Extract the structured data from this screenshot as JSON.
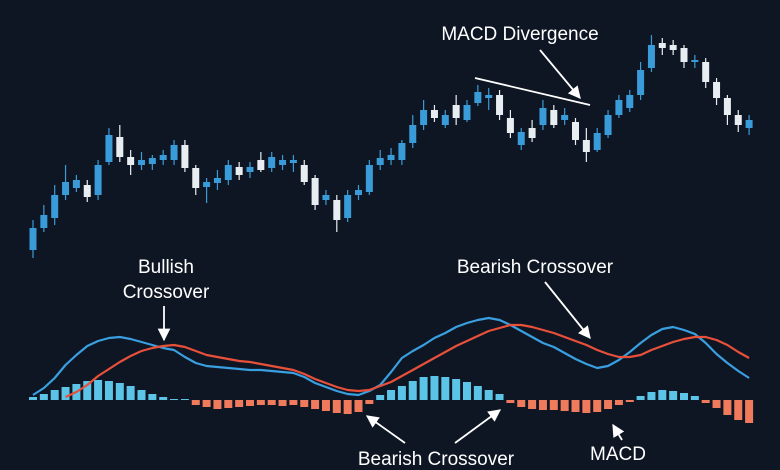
{
  "chart_data": [
    {
      "type": "candlestick",
      "ylim": [
        0,
        250
      ],
      "up_color": "#3a9bd9",
      "down_color": "#e8edf2",
      "annotations": [
        {
          "text": "MACD Divergence"
        }
      ],
      "candles": [
        {
          "open": 20,
          "high": 50,
          "low": 12,
          "close": 42
        },
        {
          "open": 42,
          "high": 65,
          "low": 38,
          "close": 55
        },
        {
          "open": 52,
          "high": 85,
          "low": 45,
          "close": 75
        },
        {
          "open": 75,
          "high": 105,
          "low": 70,
          "close": 88
        },
        {
          "open": 82,
          "high": 95,
          "low": 78,
          "close": 90
        },
        {
          "open": 85,
          "high": 90,
          "low": 68,
          "close": 73
        },
        {
          "open": 75,
          "high": 110,
          "low": 70,
          "close": 105
        },
        {
          "open": 108,
          "high": 142,
          "low": 105,
          "close": 135
        },
        {
          "open": 133,
          "high": 145,
          "low": 108,
          "close": 113
        },
        {
          "open": 113,
          "high": 120,
          "low": 95,
          "close": 105
        },
        {
          "open": 105,
          "high": 118,
          "low": 100,
          "close": 110
        },
        {
          "open": 106,
          "high": 115,
          "low": 100,
          "close": 112
        },
        {
          "open": 110,
          "high": 120,
          "low": 105,
          "close": 115
        },
        {
          "open": 110,
          "high": 130,
          "low": 105,
          "close": 125
        },
        {
          "open": 125,
          "high": 130,
          "low": 98,
          "close": 102
        },
        {
          "open": 102,
          "high": 105,
          "low": 75,
          "close": 82
        },
        {
          "open": 83,
          "high": 92,
          "low": 67,
          "close": 88
        },
        {
          "open": 87,
          "high": 100,
          "low": 80,
          "close": 92
        },
        {
          "open": 90,
          "high": 110,
          "low": 85,
          "close": 105
        },
        {
          "open": 103,
          "high": 108,
          "low": 90,
          "close": 95
        },
        {
          "open": 98,
          "high": 108,
          "low": 92,
          "close": 103
        },
        {
          "open": 110,
          "high": 118,
          "low": 98,
          "close": 100
        },
        {
          "open": 102,
          "high": 118,
          "low": 98,
          "close": 113
        },
        {
          "open": 105,
          "high": 115,
          "low": 100,
          "close": 110
        },
        {
          "open": 107,
          "high": 115,
          "low": 98,
          "close": 110
        },
        {
          "open": 105,
          "high": 110,
          "low": 85,
          "close": 88
        },
        {
          "open": 92,
          "high": 95,
          "low": 60,
          "close": 65
        },
        {
          "open": 70,
          "high": 80,
          "low": 65,
          "close": 75
        },
        {
          "open": 70,
          "high": 75,
          "low": 38,
          "close": 50
        },
        {
          "open": 52,
          "high": 80,
          "low": 48,
          "close": 75
        },
        {
          "open": 75,
          "high": 85,
          "low": 70,
          "close": 80
        },
        {
          "open": 78,
          "high": 110,
          "low": 75,
          "close": 105
        },
        {
          "open": 105,
          "high": 120,
          "low": 100,
          "close": 112
        },
        {
          "open": 110,
          "high": 122,
          "low": 105,
          "close": 115
        },
        {
          "open": 110,
          "high": 130,
          "low": 105,
          "close": 127
        },
        {
          "open": 127,
          "high": 155,
          "low": 122,
          "close": 145
        },
        {
          "open": 145,
          "high": 170,
          "low": 140,
          "close": 160
        },
        {
          "open": 160,
          "high": 165,
          "low": 148,
          "close": 152
        },
        {
          "open": 145,
          "high": 160,
          "low": 142,
          "close": 155
        },
        {
          "open": 165,
          "high": 175,
          "low": 145,
          "close": 152
        },
        {
          "open": 150,
          "high": 170,
          "low": 148,
          "close": 165
        },
        {
          "open": 167,
          "high": 185,
          "low": 164,
          "close": 178
        },
        {
          "open": 172,
          "high": 182,
          "low": 160,
          "close": 175
        },
        {
          "open": 175,
          "high": 180,
          "low": 150,
          "close": 155
        },
        {
          "open": 152,
          "high": 160,
          "low": 132,
          "close": 137
        },
        {
          "open": 125,
          "high": 142,
          "low": 120,
          "close": 138
        },
        {
          "open": 142,
          "high": 150,
          "low": 128,
          "close": 132
        },
        {
          "open": 145,
          "high": 170,
          "low": 140,
          "close": 162
        },
        {
          "open": 160,
          "high": 165,
          "low": 142,
          "close": 145
        },
        {
          "open": 150,
          "high": 162,
          "low": 145,
          "close": 155
        },
        {
          "open": 148,
          "high": 152,
          "low": 125,
          "close": 130
        },
        {
          "open": 130,
          "high": 142,
          "low": 108,
          "close": 118
        },
        {
          "open": 120,
          "high": 142,
          "low": 118,
          "close": 137
        },
        {
          "open": 135,
          "high": 160,
          "low": 132,
          "close": 155
        },
        {
          "open": 155,
          "high": 175,
          "low": 152,
          "close": 170
        },
        {
          "open": 162,
          "high": 180,
          "low": 158,
          "close": 175
        },
        {
          "open": 175,
          "high": 208,
          "low": 170,
          "close": 200
        },
        {
          "open": 202,
          "high": 235,
          "low": 198,
          "close": 225
        },
        {
          "open": 227,
          "high": 232,
          "low": 215,
          "close": 222
        },
        {
          "open": 225,
          "high": 230,
          "low": 215,
          "close": 220
        },
        {
          "open": 222,
          "high": 225,
          "low": 202,
          "close": 208
        },
        {
          "open": 208,
          "high": 215,
          "low": 202,
          "close": 210
        },
        {
          "open": 208,
          "high": 212,
          "low": 182,
          "close": 188
        },
        {
          "open": 188,
          "high": 192,
          "low": 165,
          "close": 172
        },
        {
          "open": 172,
          "high": 175,
          "low": 145,
          "close": 155
        },
        {
          "open": 155,
          "high": 160,
          "low": 138,
          "close": 145
        },
        {
          "open": 142,
          "high": 155,
          "low": 135,
          "close": 150
        }
      ]
    },
    {
      "type": "macd",
      "ylim": [
        -3,
        9.5
      ],
      "annotations": [
        {
          "lines": [
            "Bullish",
            "Crossover"
          ]
        },
        {
          "text": "Bearish Crossover"
        },
        {
          "text": "Bearish Crossover"
        },
        {
          "text": "MACD"
        }
      ],
      "histogram": {
        "positive_color": "#5cc4e6",
        "negative_color": "#f07b5c",
        "values": [
          0.3,
          0.6,
          1.0,
          1.3,
          1.6,
          1.9,
          2.0,
          1.9,
          1.7,
          1.4,
          1.0,
          0.6,
          0.3,
          0.1,
          0.1,
          -0.5,
          -0.7,
          -0.9,
          -0.8,
          -0.7,
          -0.6,
          -0.5,
          -0.5,
          -0.6,
          -0.5,
          -0.7,
          -0.9,
          -1.1,
          -1.3,
          -1.4,
          -1.2,
          -0.4,
          0.5,
          1.0,
          1.4,
          1.9,
          2.3,
          2.4,
          2.3,
          2.1,
          1.8,
          1.4,
          1.0,
          0.6,
          -0.3,
          -0.7,
          -0.9,
          -1.0,
          -1.0,
          -1.1,
          -1.2,
          -1.3,
          -1.2,
          -0.9,
          -0.5,
          -0.2,
          0.4,
          0.8,
          1.0,
          0.9,
          0.7,
          0.4,
          -0.3,
          -0.8,
          -1.5,
          -2.0,
          -2.3
        ]
      },
      "series": [
        {
          "color": "#3a9fe0",
          "values": [
            0.5,
            1.2,
            2.2,
            3.5,
            4.5,
            5.4,
            5.9,
            6.2,
            6.3,
            6.1,
            5.8,
            5.5,
            5.2,
            5.0,
            4.3,
            3.7,
            3.4,
            3.3,
            3.2,
            3.1,
            3.0,
            3.0,
            2.9,
            2.8,
            2.7,
            2.3,
            1.7,
            1.3,
            0.9,
            0.6,
            0.5,
            0.9,
            1.5,
            2.8,
            4.2,
            4.9,
            5.5,
            6.2,
            6.7,
            7.3,
            7.7,
            8.0,
            8.2,
            8.0,
            7.5,
            6.9,
            6.3,
            5.7,
            5.3,
            4.7,
            4.1,
            3.6,
            3.2,
            3.4,
            4.0,
            4.8,
            5.7,
            6.5,
            7.1,
            7.3,
            7.0,
            6.6,
            5.7,
            4.6,
            3.7,
            2.9,
            2.2
          ]
        },
        {
          "color": "#e8503a",
          "values": [
            null,
            null,
            null,
            0.3,
            0.8,
            1.5,
            2.4,
            3.1,
            3.8,
            4.4,
            4.9,
            5.2,
            5.4,
            5.5,
            5.3,
            4.9,
            4.5,
            4.3,
            4.1,
            3.9,
            3.8,
            3.6,
            3.4,
            3.2,
            3.0,
            2.6,
            2.1,
            1.7,
            1.3,
            1.0,
            0.9,
            1.0,
            1.4,
            1.8,
            2.4,
            3.0,
            3.6,
            4.2,
            4.8,
            5.4,
            5.9,
            6.4,
            6.9,
            7.2,
            7.5,
            7.5,
            7.3,
            7.0,
            6.7,
            6.3,
            5.9,
            5.5,
            5.0,
            4.6,
            4.3,
            4.3,
            4.5,
            5.0,
            5.4,
            5.8,
            6.1,
            6.3,
            6.3,
            6.0,
            5.5,
            4.8,
            4.2
          ]
        }
      ]
    }
  ]
}
